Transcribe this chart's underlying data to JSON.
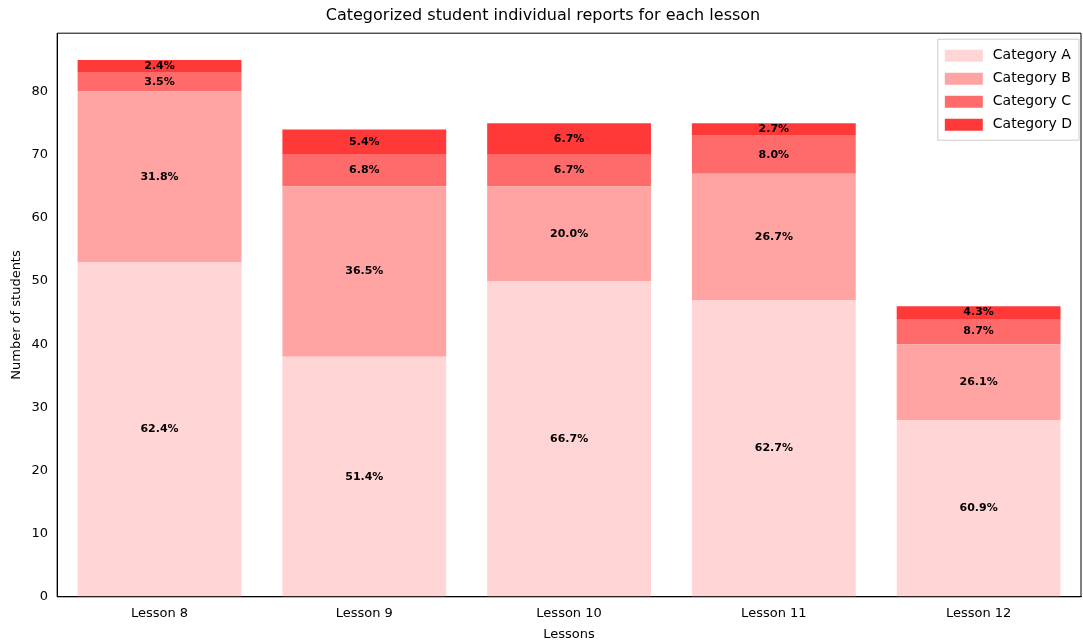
{
  "chart_data": {
    "type": "bar",
    "stacked": true,
    "title": "Categorized student individual reports for each lesson",
    "xlabel": "Lessons",
    "ylabel": "Number of students",
    "categories": [
      "Lesson 8",
      "Lesson 9",
      "Lesson 10",
      "Lesson 11",
      "Lesson 12"
    ],
    "series": [
      {
        "name": "Category A",
        "color": "#ffd5d5",
        "values": [
          53,
          38,
          50,
          47,
          28
        ]
      },
      {
        "name": "Category B",
        "color": "#ffa3a3",
        "values": [
          27,
          27,
          15,
          20,
          12
        ]
      },
      {
        "name": "Category C",
        "color": "#ff6b6b",
        "values": [
          3,
          5,
          5,
          6,
          4
        ]
      },
      {
        "name": "Category D",
        "color": "#ff3838",
        "values": [
          2,
          4,
          5,
          2,
          2
        ]
      }
    ],
    "annotations": [
      "62.4%",
      "31.8%",
      "3.5%",
      "2.4%",
      "51.4%",
      "36.5%",
      "6.8%",
      "5.4%",
      "66.7%",
      "20.0%",
      "6.7%",
      "6.7%",
      "62.7%",
      "26.7%",
      "8.0%",
      "2.7%",
      "60.9%",
      "26.1%",
      "8.7%",
      "4.3%"
    ],
    "ylim": [
      0,
      89.25
    ],
    "yticks": [
      0,
      10,
      20,
      30,
      40,
      50,
      60,
      70,
      80
    ],
    "grid": false,
    "legend": "top right"
  }
}
